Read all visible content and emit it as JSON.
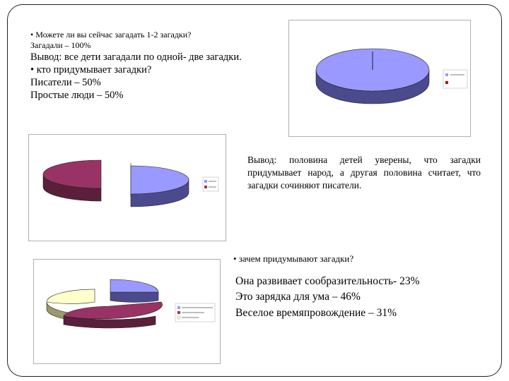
{
  "slide": {
    "question1": "• Можете ли вы сейчас загадать 1-2 загадки?",
    "answer1": "Загадали – 100%",
    "conclusion1": "Вывод: все дети загадали по одной- две загадки.",
    "question2": "• кто придумывает загадки?",
    "answer2a": "Писатели – 50%",
    "answer2b": "Простые люди – 50%",
    "conclusion2": "Вывод: половина детей уверены, что загадки придумывает народ, а другая половина считает, что загадки сочиняют писатели.",
    "question3": "• зачем придумывают загадки?",
    "answer3a": "Она развивает сообразительность- 23%",
    "answer3b": "Это зарядка для ума – 46%",
    "answer3c": "Веселое времяпровождение – 31%"
  },
  "chart_data": [
    {
      "type": "pie",
      "slices": [
        {
          "value": 100,
          "color": "#9999ff"
        },
        {
          "value": 0,
          "color": "#cc0000"
        }
      ],
      "legend_position": "right"
    },
    {
      "type": "pie",
      "slices": [
        {
          "value": 50,
          "color": "#9999ff"
        },
        {
          "value": 50,
          "color": "#993366"
        }
      ],
      "legend_position": "right"
    },
    {
      "type": "pie",
      "slices": [
        {
          "value": 23,
          "color": "#9999ff"
        },
        {
          "value": 46,
          "color": "#993366"
        },
        {
          "value": 31,
          "color": "#ffffcc"
        }
      ],
      "legend_position": "right"
    }
  ]
}
